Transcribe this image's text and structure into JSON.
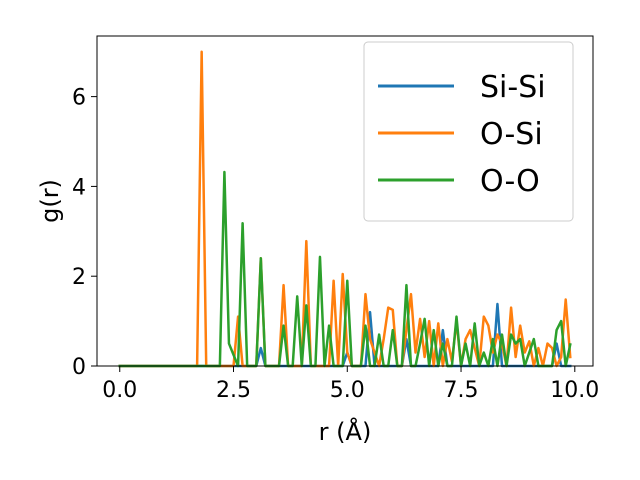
{
  "chart_data": {
    "type": "line",
    "xlabel": "r (Å)",
    "ylabel": "g(r)",
    "xlim": [
      -0.5,
      10.4
    ],
    "ylim": [
      0,
      7.35
    ],
    "xticks": [
      0.0,
      2.5,
      5.0,
      7.5,
      10.0
    ],
    "xtick_labels": [
      "0.0",
      "2.5",
      "5.0",
      "7.5",
      "10.0"
    ],
    "yticks": [
      0,
      2,
      4,
      6
    ],
    "ytick_labels": [
      "0",
      "2",
      "4",
      "6"
    ],
    "grid": false,
    "legend_position": "upper-right",
    "series": [
      {
        "name": "Si-Si",
        "color": "#1f77b4",
        "x": [
          0.0,
          3.0,
          3.1,
          3.2,
          4.9,
          5.0,
          5.1,
          5.4,
          5.5,
          5.6,
          6.2,
          6.3,
          6.4,
          7.0,
          7.1,
          7.2,
          8.2,
          8.3,
          8.4,
          9.5,
          9.6,
          9.7,
          9.9
        ],
        "values": [
          0.0,
          0.0,
          0.4,
          0.0,
          0.0,
          0.3,
          0.0,
          0.0,
          1.2,
          0.0,
          0.0,
          0.6,
          0.0,
          0.0,
          0.8,
          0.0,
          0.0,
          1.38,
          0.0,
          0.0,
          0.5,
          0.0,
          0.0
        ]
      },
      {
        "name": "O-Si",
        "color": "#ff7f0e",
        "x": [
          0.0,
          1.7,
          1.8,
          1.9,
          2.5,
          2.6,
          2.7,
          3.0,
          3.1,
          3.2,
          3.5,
          3.6,
          3.7,
          4.0,
          4.1,
          4.2,
          4.6,
          4.7,
          4.8,
          4.9,
          5.0,
          5.1,
          5.3,
          5.4,
          5.5,
          5.7,
          5.8,
          5.9,
          6.0,
          6.1,
          6.2,
          6.4,
          6.5,
          6.6,
          6.7,
          6.8,
          6.9,
          7.0,
          7.1,
          7.2,
          7.3,
          7.4,
          7.5,
          7.6,
          7.7,
          7.8,
          7.9,
          8.0,
          8.1,
          8.2,
          8.3,
          8.4,
          8.5,
          8.6,
          8.7,
          8.8,
          8.9,
          9.0,
          9.1,
          9.2,
          9.3,
          9.4,
          9.5,
          9.6,
          9.7,
          9.8,
          9.9
        ],
        "values": [
          0.0,
          0.0,
          7.0,
          0.0,
          0.0,
          1.1,
          0.0,
          0.0,
          2.4,
          0.0,
          0.0,
          1.8,
          0.0,
          0.0,
          2.78,
          0.0,
          0.0,
          1.9,
          0.0,
          2.05,
          0.3,
          0.0,
          0.0,
          1.6,
          0.6,
          0.0,
          0.6,
          1.3,
          1.25,
          0.0,
          0.0,
          1.6,
          0.3,
          1.05,
          0.2,
          1.0,
          0.0,
          0.95,
          0.0,
          0.6,
          0.1,
          1.0,
          0.0,
          0.6,
          0.8,
          0.4,
          0.0,
          1.1,
          0.9,
          0.3,
          0.7,
          0.5,
          0.0,
          1.3,
          0.2,
          0.9,
          0.3,
          0.55,
          0.0,
          0.4,
          0.0,
          0.5,
          0.4,
          0.0,
          0.2,
          1.48,
          0.2
        ]
      },
      {
        "name": "O-O",
        "color": "#2ca02c",
        "x": [
          0.0,
          2.2,
          2.3,
          2.4,
          2.6,
          2.7,
          2.8,
          3.0,
          3.1,
          3.2,
          3.5,
          3.6,
          3.7,
          3.8,
          3.9,
          4.0,
          4.1,
          4.2,
          4.3,
          4.4,
          4.5,
          4.6,
          4.7,
          4.8,
          4.9,
          5.0,
          5.1,
          5.2,
          5.3,
          5.4,
          5.5,
          5.6,
          5.7,
          5.8,
          5.9,
          6.0,
          6.1,
          6.2,
          6.3,
          6.4,
          6.5,
          6.6,
          6.7,
          6.8,
          6.9,
          7.0,
          7.1,
          7.2,
          7.3,
          7.4,
          7.5,
          7.6,
          7.7,
          7.8,
          7.9,
          8.0,
          8.1,
          8.2,
          8.3,
          8.4,
          8.5,
          8.6,
          8.7,
          8.8,
          8.9,
          9.0,
          9.1,
          9.2,
          9.3,
          9.4,
          9.5,
          9.6,
          9.7,
          9.8,
          9.9
        ],
        "values": [
          0.0,
          0.0,
          4.32,
          0.5,
          0.0,
          3.18,
          0.0,
          0.0,
          2.4,
          0.0,
          0.0,
          0.9,
          0.0,
          0.0,
          1.55,
          0.0,
          1.35,
          0.0,
          0.0,
          2.43,
          0.0,
          0.9,
          0.0,
          0.0,
          0.0,
          1.9,
          0.0,
          0.0,
          0.0,
          0.9,
          0.0,
          0.0,
          0.7,
          0.0,
          0.0,
          0.8,
          0.0,
          0.0,
          1.8,
          0.0,
          0.0,
          0.5,
          1.05,
          0.0,
          0.8,
          0.0,
          0.5,
          0.0,
          0.0,
          1.1,
          0.0,
          0.5,
          0.0,
          0.95,
          0.0,
          0.3,
          0.0,
          0.6,
          0.0,
          0.7,
          0.0,
          0.7,
          0.5,
          0.6,
          0.0,
          0.3,
          0.6,
          0.0,
          0.0,
          0.0,
          0.0,
          0.8,
          1.0,
          0.0,
          0.48
        ]
      }
    ]
  }
}
